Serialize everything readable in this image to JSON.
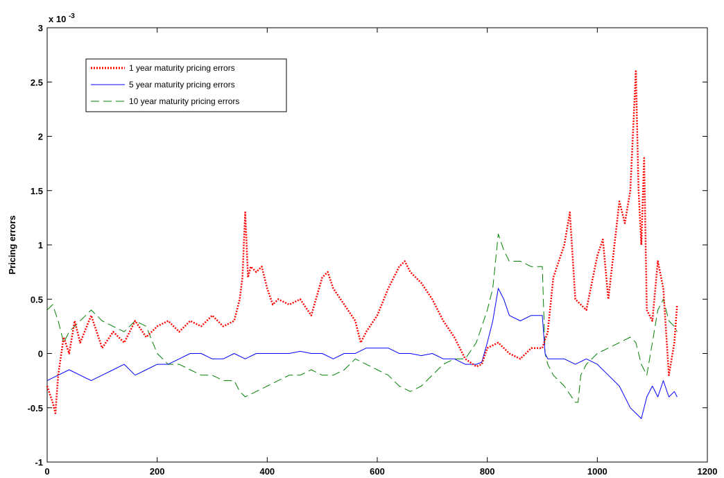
{
  "chart_data": {
    "type": "line",
    "title": "",
    "xlabel": "",
    "ylabel": "Pricing errors",
    "y_multiplier_base": "x 10",
    "y_multiplier_exp": "-3",
    "xlim": [
      0,
      1200
    ],
    "ylim": [
      -1,
      3
    ],
    "x_ticks": [
      0,
      200,
      400,
      600,
      800,
      1000,
      1200
    ],
    "y_ticks": [
      -1,
      -0.5,
      0,
      0.5,
      1,
      1.5,
      2,
      2.5,
      3
    ],
    "x_tick_labels": [
      "0",
      "200",
      "400",
      "600",
      "800",
      "1000",
      "1200"
    ],
    "y_tick_labels": [
      "-1",
      "-0.5",
      "0",
      "0.5",
      "1",
      "1.5",
      "2",
      "2.5",
      "3"
    ],
    "grid": false,
    "legend_position": "top-left",
    "series": [
      {
        "name": "1 year maturity pricing errors",
        "color": "#ff0000",
        "style": "dotted",
        "x": [
          0,
          10,
          15,
          20,
          30,
          40,
          50,
          60,
          80,
          100,
          120,
          140,
          160,
          180,
          200,
          220,
          240,
          260,
          280,
          300,
          320,
          340,
          350,
          355,
          360,
          365,
          370,
          380,
          390,
          400,
          410,
          420,
          440,
          460,
          480,
          500,
          510,
          520,
          540,
          560,
          570,
          580,
          600,
          620,
          640,
          650,
          660,
          680,
          700,
          720,
          740,
          760,
          780,
          790,
          800,
          820,
          840,
          860,
          880,
          900,
          910,
          920,
          940,
          950,
          960,
          980,
          1000,
          1010,
          1020,
          1040,
          1050,
          1060,
          1070,
          1075,
          1080,
          1085,
          1090,
          1100,
          1110,
          1120,
          1130,
          1140,
          1145
        ],
        "y": [
          -0.3,
          -0.45,
          -0.55,
          -0.2,
          0.15,
          0.0,
          0.3,
          0.1,
          0.35,
          0.05,
          0.2,
          0.1,
          0.3,
          0.15,
          0.25,
          0.3,
          0.2,
          0.3,
          0.25,
          0.35,
          0.25,
          0.3,
          0.5,
          0.7,
          1.3,
          0.7,
          0.8,
          0.75,
          0.8,
          0.6,
          0.45,
          0.5,
          0.45,
          0.5,
          0.35,
          0.7,
          0.75,
          0.6,
          0.45,
          0.3,
          0.1,
          0.2,
          0.35,
          0.6,
          0.8,
          0.85,
          0.75,
          0.65,
          0.5,
          0.3,
          0.15,
          -0.05,
          -0.12,
          -0.1,
          0.05,
          0.1,
          0.0,
          -0.05,
          0.05,
          0.05,
          0.2,
          0.7,
          1.0,
          1.3,
          0.5,
          0.4,
          0.9,
          1.05,
          0.5,
          1.4,
          1.2,
          1.5,
          2.6,
          1.5,
          1.0,
          1.8,
          0.4,
          0.3,
          0.85,
          0.6,
          -0.2,
          0.1,
          0.45
        ]
      },
      {
        "name": "5 year maturity pricing errors",
        "color": "#0000ff",
        "style": "solid",
        "x": [
          0,
          20,
          40,
          60,
          80,
          100,
          120,
          140,
          160,
          180,
          200,
          220,
          240,
          260,
          280,
          300,
          320,
          340,
          360,
          380,
          400,
          420,
          440,
          460,
          480,
          500,
          520,
          540,
          560,
          580,
          600,
          620,
          640,
          660,
          680,
          700,
          720,
          740,
          760,
          780,
          790,
          800,
          810,
          820,
          830,
          840,
          860,
          880,
          900,
          905,
          910,
          920,
          940,
          960,
          980,
          1000,
          1020,
          1040,
          1060,
          1070,
          1080,
          1090,
          1100,
          1110,
          1120,
          1130,
          1140,
          1145
        ],
        "y": [
          -0.25,
          -0.2,
          -0.15,
          -0.2,
          -0.25,
          -0.2,
          -0.15,
          -0.1,
          -0.2,
          -0.15,
          -0.1,
          -0.1,
          -0.05,
          0.0,
          0.0,
          -0.05,
          -0.05,
          0.0,
          -0.05,
          0.0,
          0.0,
          0.0,
          0.0,
          0.02,
          0.0,
          0.0,
          -0.05,
          0.0,
          0.0,
          0.05,
          0.05,
          0.05,
          0.0,
          0.0,
          -0.02,
          0.0,
          -0.05,
          -0.05,
          -0.1,
          -0.1,
          -0.08,
          0.1,
          0.3,
          0.6,
          0.5,
          0.35,
          0.3,
          0.35,
          0.35,
          0.0,
          -0.05,
          -0.05,
          -0.05,
          -0.1,
          -0.05,
          -0.1,
          -0.2,
          -0.3,
          -0.5,
          -0.55,
          -0.6,
          -0.4,
          -0.3,
          -0.4,
          -0.25,
          -0.4,
          -0.35,
          -0.4
        ]
      },
      {
        "name": "10 year maturity pricing errors",
        "color": "#008000",
        "style": "dashed",
        "x": [
          0,
          10,
          20,
          30,
          40,
          60,
          80,
          100,
          120,
          140,
          160,
          180,
          200,
          220,
          240,
          260,
          280,
          300,
          320,
          340,
          350,
          360,
          380,
          400,
          420,
          440,
          460,
          480,
          500,
          520,
          540,
          560,
          580,
          600,
          620,
          640,
          660,
          680,
          700,
          720,
          740,
          760,
          780,
          800,
          810,
          820,
          830,
          840,
          860,
          880,
          900,
          905,
          910,
          920,
          940,
          960,
          965,
          970,
          980,
          1000,
          1020,
          1040,
          1060,
          1070,
          1080,
          1090,
          1100,
          1110,
          1120,
          1130,
          1140,
          1145
        ],
        "y": [
          0.4,
          0.45,
          0.3,
          0.1,
          0.2,
          0.3,
          0.4,
          0.3,
          0.25,
          0.2,
          0.3,
          0.25,
          0.0,
          -0.1,
          -0.1,
          -0.15,
          -0.2,
          -0.2,
          -0.25,
          -0.25,
          -0.35,
          -0.4,
          -0.35,
          -0.3,
          -0.25,
          -0.2,
          -0.2,
          -0.15,
          -0.2,
          -0.2,
          -0.15,
          -0.05,
          -0.1,
          -0.15,
          -0.2,
          -0.3,
          -0.35,
          -0.3,
          -0.2,
          -0.1,
          -0.05,
          -0.05,
          0.1,
          0.4,
          0.6,
          1.1,
          0.95,
          0.85,
          0.85,
          0.8,
          0.8,
          0.0,
          -0.1,
          -0.2,
          -0.3,
          -0.45,
          -0.45,
          -0.2,
          -0.1,
          0.0,
          0.05,
          0.1,
          0.15,
          0.1,
          -0.1,
          -0.2,
          0.1,
          0.4,
          0.5,
          0.3,
          0.25,
          0.2
        ]
      }
    ]
  }
}
